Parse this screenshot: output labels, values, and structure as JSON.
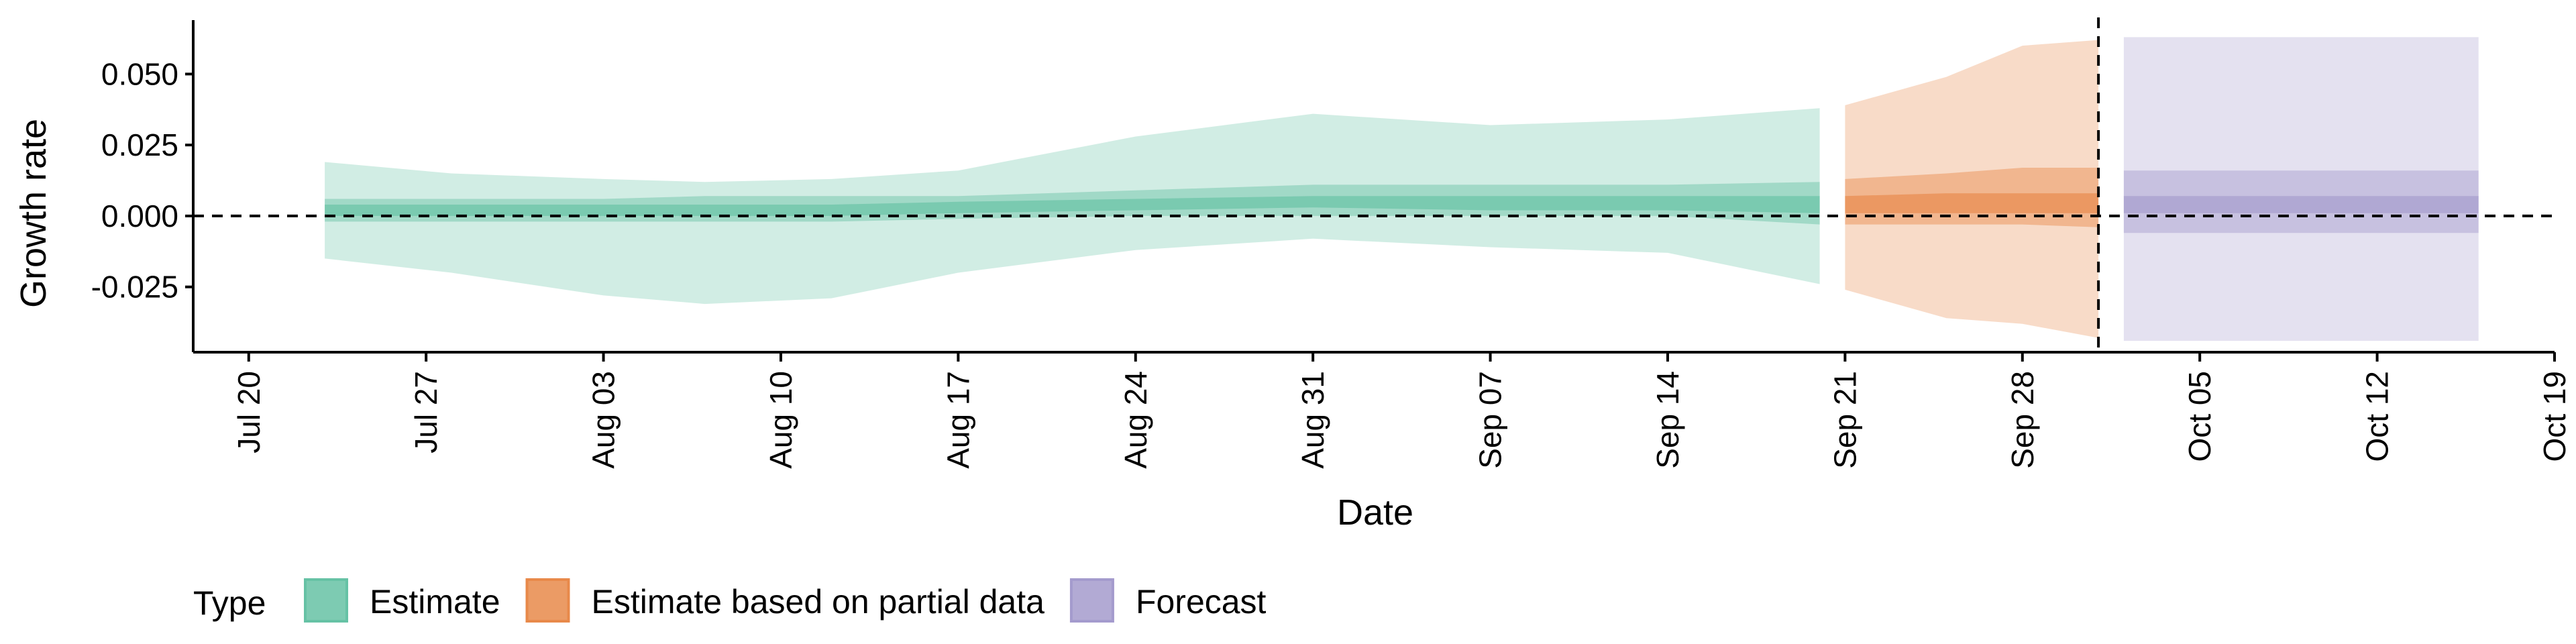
{
  "chart_data": {
    "type": "area",
    "xlabel": "Date",
    "ylabel": "Growth rate",
    "x_ticks": [
      "Jul 20",
      "Jul 27",
      "Aug 03",
      "Aug 10",
      "Aug 17",
      "Aug 24",
      "Aug 31",
      "Sep 07",
      "Sep 14",
      "Sep 21",
      "Sep 28",
      "Oct 05",
      "Oct 12",
      "Oct 19"
    ],
    "y_ticks": [
      "0.050",
      "0.025",
      "0.000",
      "-0.025"
    ],
    "y_tick_values": [
      0.05,
      0.025,
      0.0,
      -0.025
    ],
    "xlim": [
      "2020-07-19",
      "2020-10-19"
    ],
    "ylim": [
      -0.048,
      0.069
    ],
    "reference_lines": {
      "horizontal_y": 0.0,
      "vertical_date": "2020-10-01"
    },
    "legend": {
      "title": "Type",
      "placement": "bottom-left",
      "entries": [
        "Estimate",
        "Estimate based on partial data",
        "Forecast"
      ]
    },
    "colors": {
      "Estimate": "#66c2a5",
      "Estimate based on partial data": "#e8894a",
      "Forecast": "#a49bcd"
    },
    "series": [
      {
        "name": "Estimate",
        "points": [
          {
            "date": "2020-07-23",
            "lower90": -0.015,
            "upper90": 0.019,
            "lower50": -0.002,
            "upper50": 0.006,
            "lower20": 0.0,
            "upper20": 0.004
          },
          {
            "date": "2020-07-28",
            "lower90": -0.02,
            "upper90": 0.015,
            "lower50": -0.002,
            "upper50": 0.006,
            "lower20": 0.0,
            "upper20": 0.004
          },
          {
            "date": "2020-08-03",
            "lower90": -0.028,
            "upper90": 0.013,
            "lower50": -0.002,
            "upper50": 0.006,
            "lower20": 0.0,
            "upper20": 0.004
          },
          {
            "date": "2020-08-07",
            "lower90": -0.031,
            "upper90": 0.012,
            "lower50": -0.002,
            "upper50": 0.007,
            "lower20": 0.0,
            "upper20": 0.004
          },
          {
            "date": "2020-08-12",
            "lower90": -0.029,
            "upper90": 0.013,
            "lower50": -0.002,
            "upper50": 0.007,
            "lower20": 0.0,
            "upper20": 0.004
          },
          {
            "date": "2020-08-17",
            "lower90": -0.02,
            "upper90": 0.016,
            "lower50": -0.001,
            "upper50": 0.007,
            "lower20": 0.001,
            "upper20": 0.005
          },
          {
            "date": "2020-08-24",
            "lower90": -0.012,
            "upper90": 0.028,
            "lower50": 0.0,
            "upper50": 0.009,
            "lower20": 0.002,
            "upper20": 0.006
          },
          {
            "date": "2020-08-31",
            "lower90": -0.008,
            "upper90": 0.036,
            "lower50": 0.0,
            "upper50": 0.011,
            "lower20": 0.003,
            "upper20": 0.007
          },
          {
            "date": "2020-09-07",
            "lower90": -0.011,
            "upper90": 0.032,
            "lower50": 0.0,
            "upper50": 0.011,
            "lower20": 0.002,
            "upper20": 0.007
          },
          {
            "date": "2020-09-14",
            "lower90": -0.013,
            "upper90": 0.034,
            "lower50": 0.0,
            "upper50": 0.011,
            "lower20": 0.002,
            "upper20": 0.007
          },
          {
            "date": "2020-09-20",
            "lower90": -0.024,
            "upper90": 0.038,
            "lower50": -0.003,
            "upper50": 0.012,
            "lower20": 0.001,
            "upper20": 0.007
          }
        ]
      },
      {
        "name": "Estimate based on partial data",
        "points": [
          {
            "date": "2020-09-21",
            "lower90": -0.026,
            "upper90": 0.039,
            "lower50": -0.003,
            "upper50": 0.013,
            "lower20": 0.001,
            "upper20": 0.007
          },
          {
            "date": "2020-09-25",
            "lower90": -0.036,
            "upper90": 0.049,
            "lower50": -0.003,
            "upper50": 0.015,
            "lower20": 0.001,
            "upper20": 0.008
          },
          {
            "date": "2020-09-28",
            "lower90": -0.038,
            "upper90": 0.06,
            "lower50": -0.003,
            "upper50": 0.017,
            "lower20": 0.001,
            "upper20": 0.008
          },
          {
            "date": "2020-10-01",
            "lower90": -0.043,
            "upper90": 0.062,
            "lower50": -0.004,
            "upper50": 0.017,
            "lower20": 0.001,
            "upper20": 0.008
          }
        ]
      },
      {
        "name": "Forecast",
        "points": [
          {
            "date": "2020-10-02",
            "lower90": -0.044,
            "upper90": 0.063,
            "lower50": -0.006,
            "upper50": 0.016,
            "lower20": 0.001,
            "upper20": 0.007
          },
          {
            "date": "2020-10-16",
            "lower90": -0.044,
            "upper90": 0.063,
            "lower50": -0.006,
            "upper50": 0.016,
            "lower20": 0.001,
            "upper20": 0.007
          }
        ]
      }
    ]
  }
}
